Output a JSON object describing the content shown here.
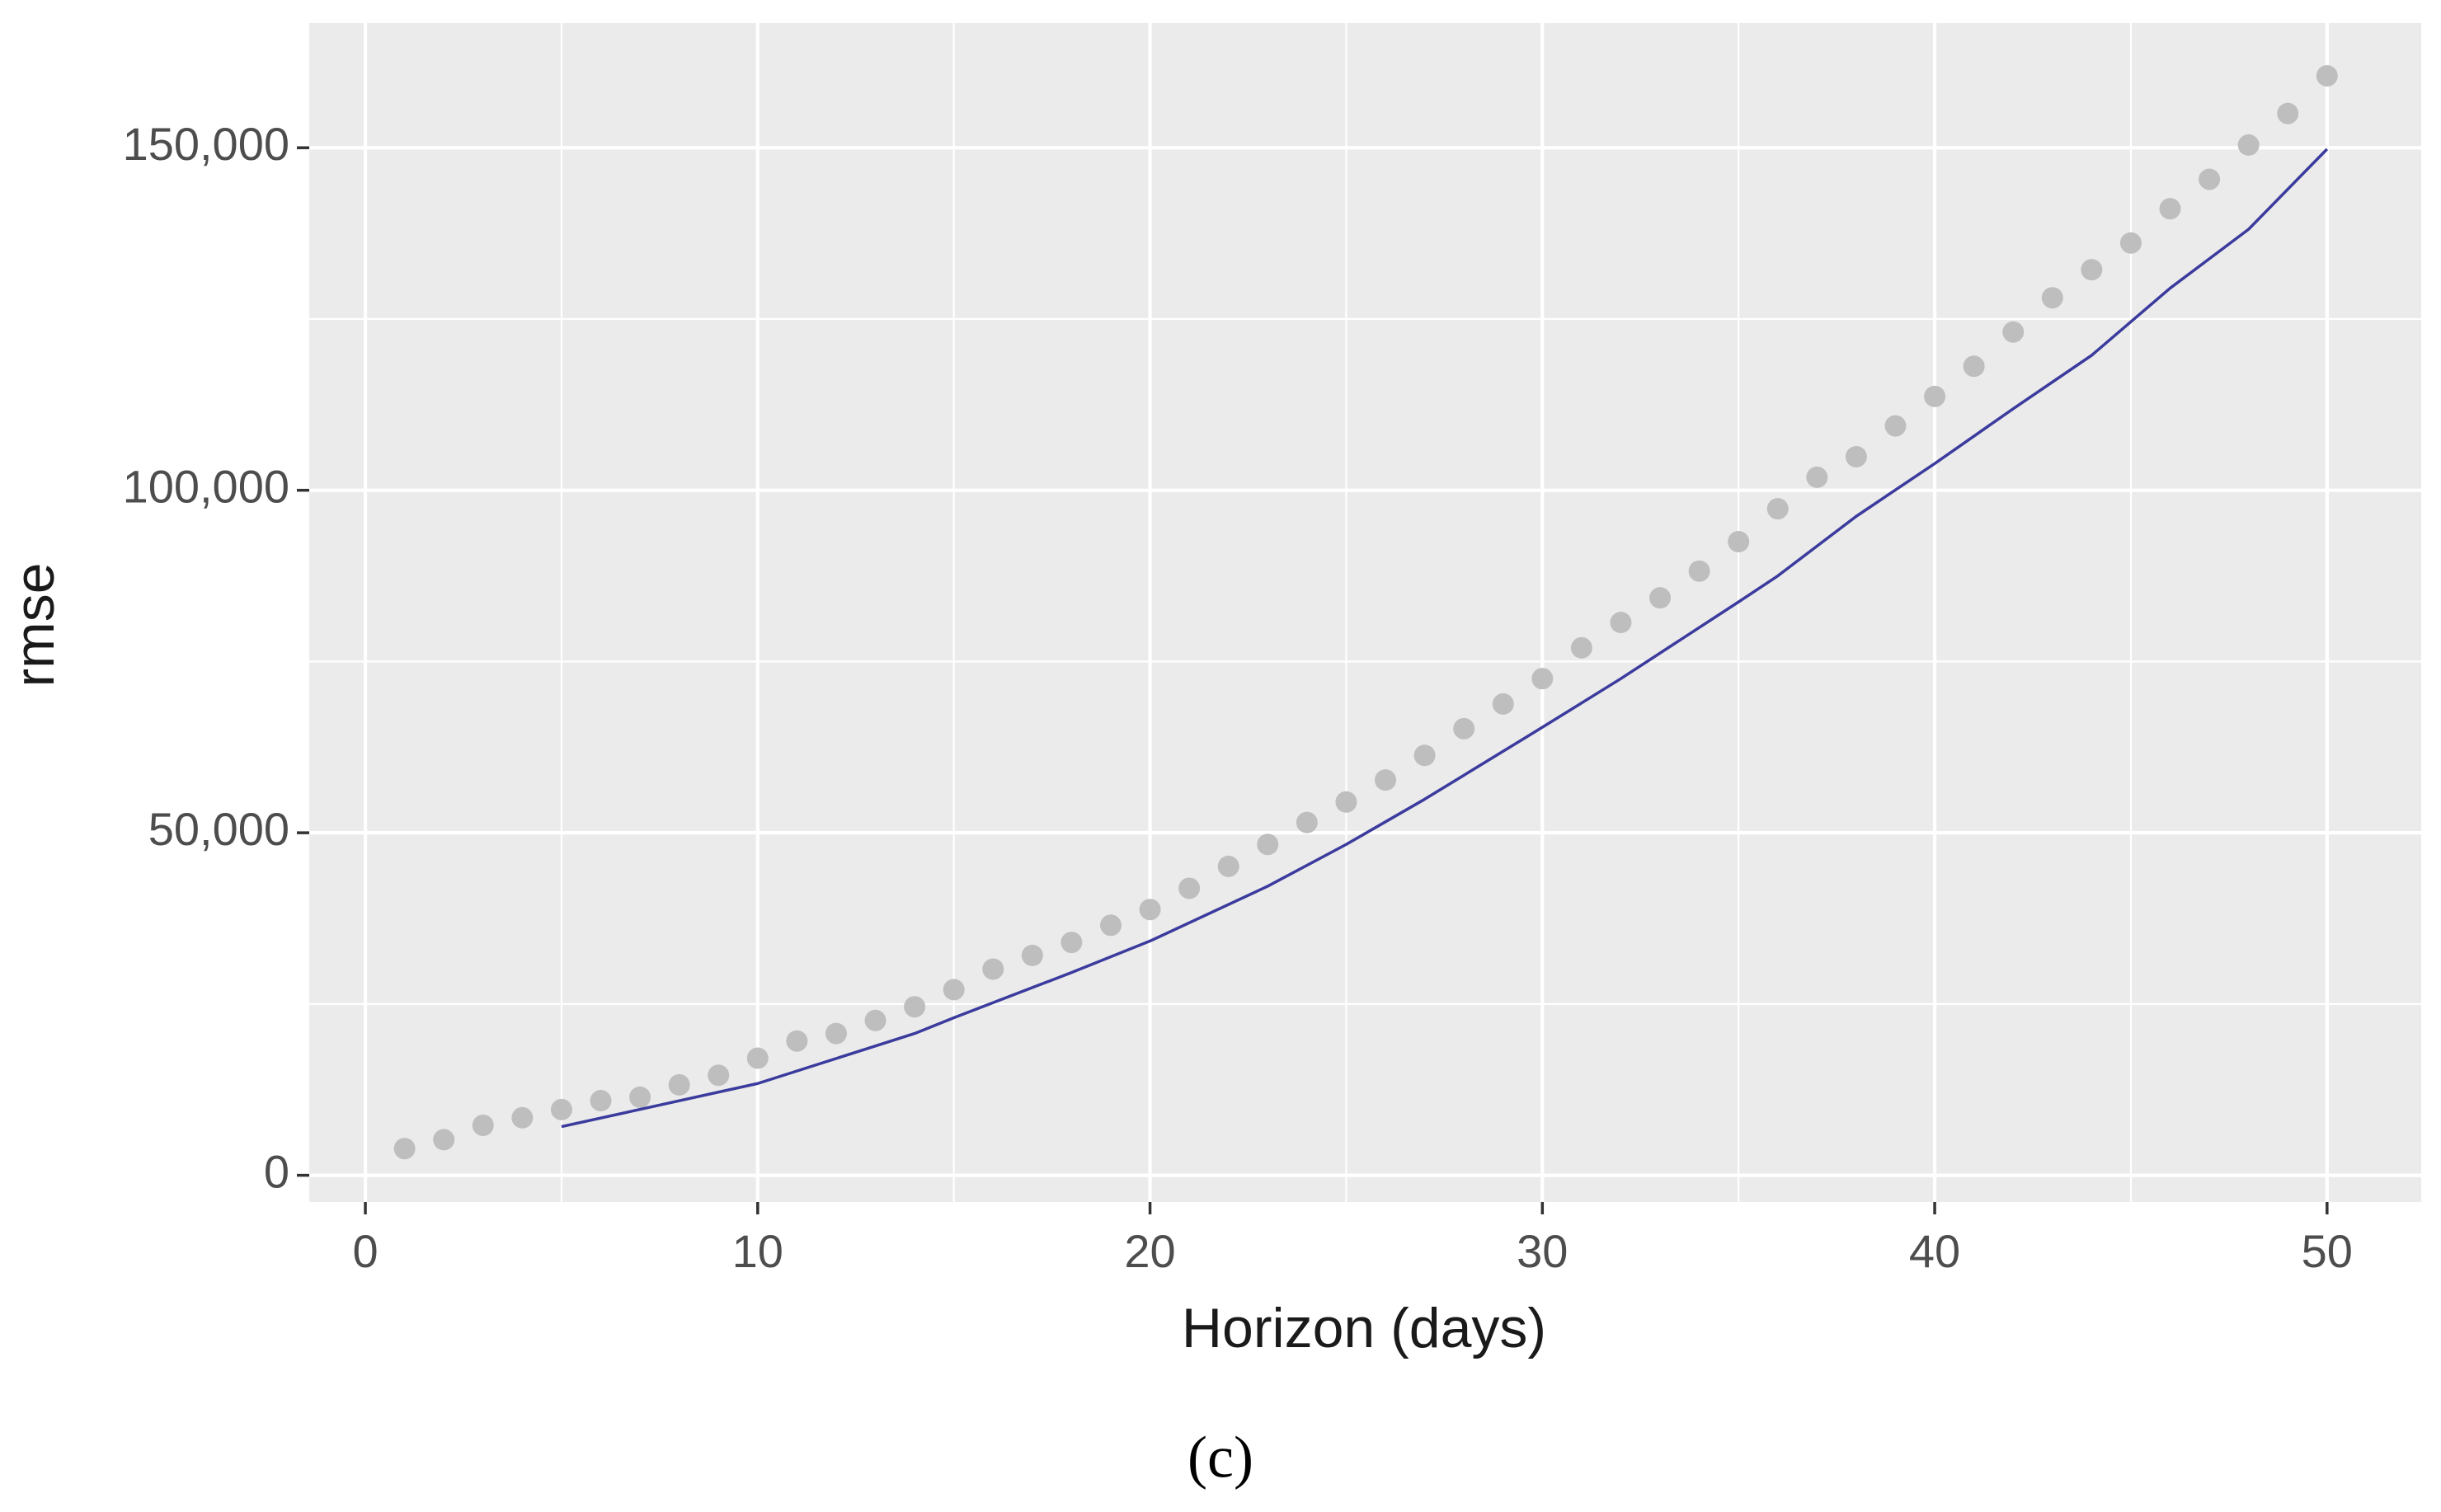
{
  "chart_data": {
    "type": "line",
    "xlabel": "Horizon (days)",
    "ylabel": "rmse",
    "caption": "(c)",
    "xlim": [
      -1.43,
      52.4
    ],
    "ylim": [
      -3900,
      168200
    ],
    "xticks": [
      0,
      10,
      20,
      30,
      40,
      50
    ],
    "yticks": [
      0,
      {
        "value": 50000,
        "label": "50,000"
      },
      {
        "value": 100000,
        "label": "100,000"
      },
      {
        "value": 150000,
        "label": "150,000"
      }
    ],
    "grid": true,
    "series": [
      {
        "style": "points",
        "color": "#bebebe",
        "x": [
          1,
          2,
          3,
          4,
          5,
          6,
          7,
          8,
          9,
          10,
          11,
          12,
          13,
          14,
          15,
          16,
          17,
          18,
          19,
          20,
          21,
          22,
          23,
          24,
          25,
          26,
          27,
          28,
          29,
          30,
          31,
          32,
          33,
          34,
          35,
          36,
          37,
          38,
          39,
          40,
          41,
          42,
          43,
          44,
          45,
          46,
          47,
          48,
          49,
          50
        ],
        "values": [
          3900,
          5200,
          7300,
          8400,
          9600,
          10900,
          11400,
          13200,
          14600,
          17100,
          19600,
          20700,
          22600,
          24600,
          27100,
          30100,
          32100,
          34000,
          36500,
          38800,
          41900,
          45100,
          48300,
          51500,
          54500,
          57700,
          61300,
          65200,
          68800,
          72500,
          77000,
          80700,
          84300,
          88200,
          92500,
          97300,
          101900,
          104900,
          109400,
          113700,
          118100,
          123100,
          128100,
          132200,
          136100,
          141100,
          145400,
          150400,
          155000,
          160500
        ]
      },
      {
        "style": "line",
        "color": "#3b3b9e",
        "x": [
          5,
          10,
          14,
          15,
          18,
          20,
          23,
          25,
          27,
          28,
          30,
          32,
          35,
          36,
          38,
          40,
          42,
          44,
          46,
          48,
          50
        ],
        "values": [
          7100,
          13400,
          20700,
          23000,
          29600,
          34200,
          42200,
          48300,
          54900,
          58400,
          65400,
          72500,
          83700,
          87500,
          96200,
          103900,
          111900,
          119700,
          129500,
          138100,
          149800
        ]
      }
    ]
  }
}
